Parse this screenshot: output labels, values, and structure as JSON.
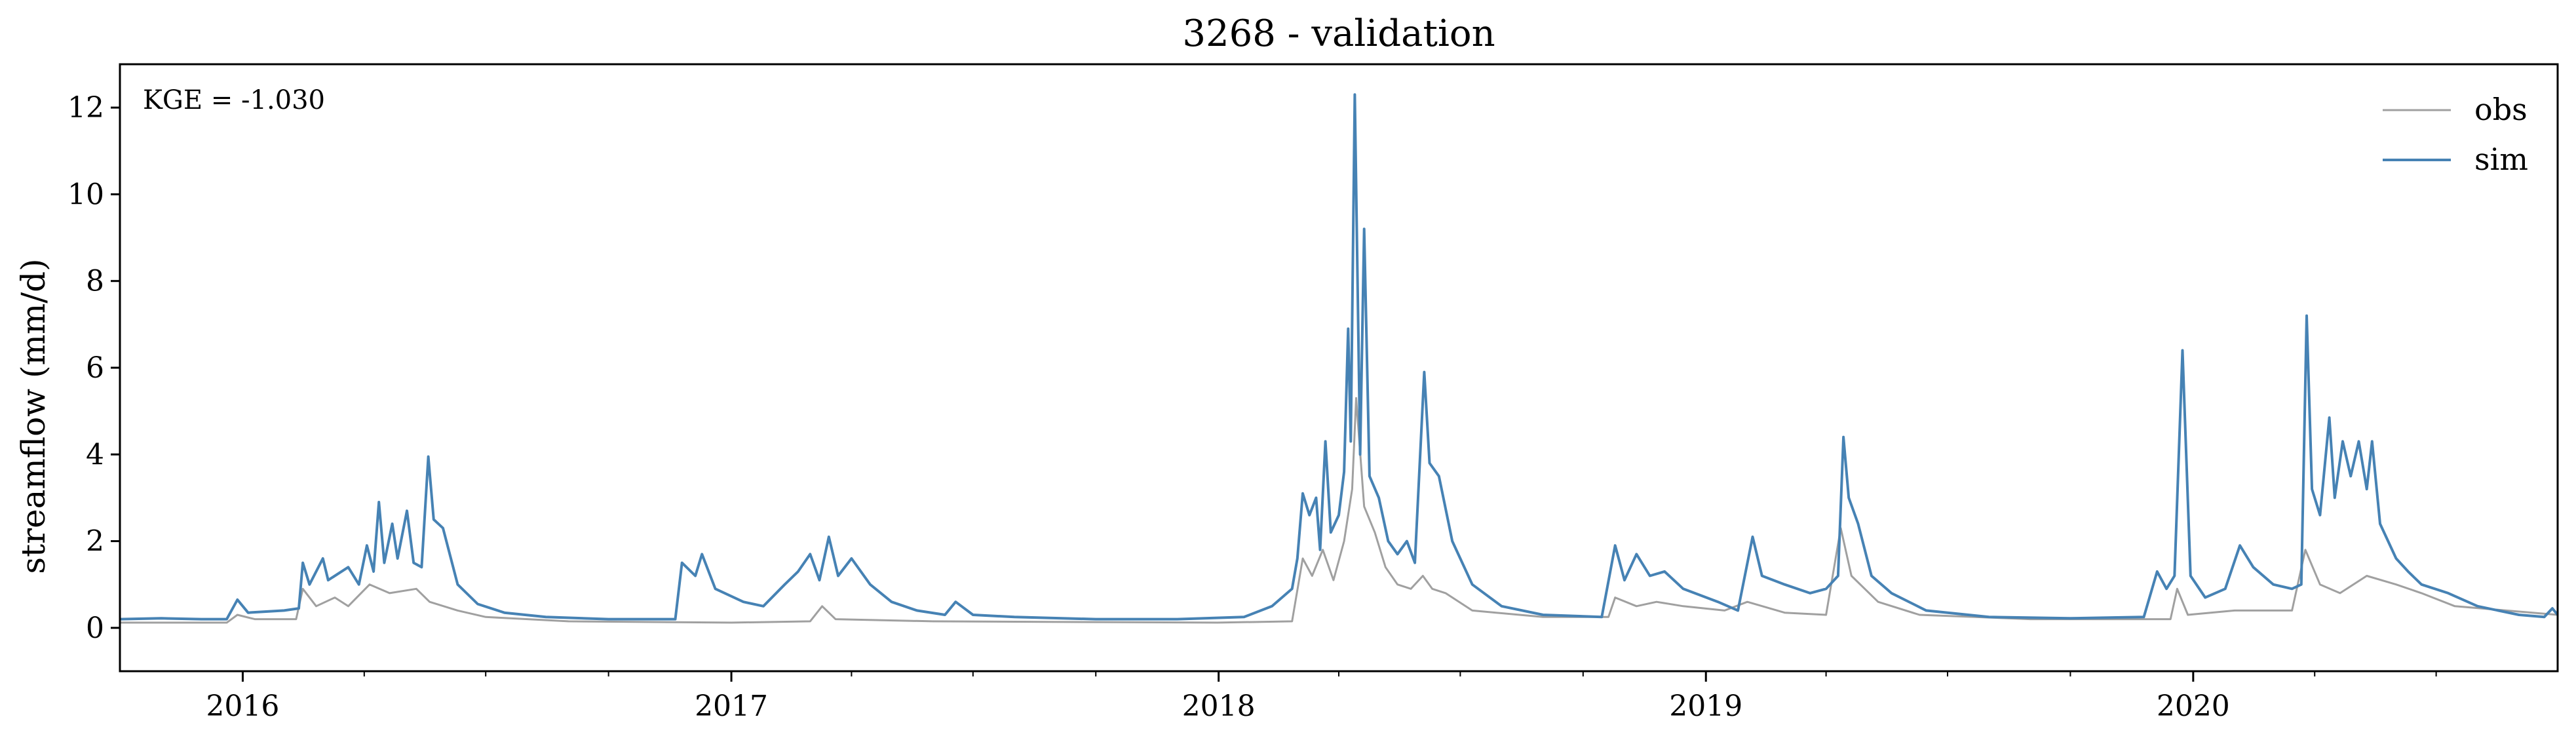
{
  "chart_data": {
    "type": "line",
    "title": "3268 - validation",
    "xlabel": "",
    "ylabel": "streamflow (mm/d)",
    "annotation": "KGE = -1.030",
    "xlim": [
      "2015-10-01",
      "2020-09-30"
    ],
    "ylim": [
      -1,
      13
    ],
    "yticks": [
      0,
      2,
      4,
      6,
      8,
      10,
      12
    ],
    "xticks": [
      {
        "date": "2016-01-01",
        "label": "2016"
      },
      {
        "date": "2017-01-01",
        "label": "2017"
      },
      {
        "date": "2018-01-01",
        "label": "2018"
      },
      {
        "date": "2019-01-01",
        "label": "2019"
      },
      {
        "date": "2020-01-01",
        "label": "2020"
      }
    ],
    "grid": false,
    "legend": "top-right",
    "series": [
      {
        "name": "obs",
        "color": "#a0a0a0",
        "points": [
          [
            "2015-10-01",
            0.12
          ],
          [
            "2015-12-20",
            0.12
          ],
          [
            "2015-12-28",
            0.3
          ],
          [
            "2016-01-10",
            0.2
          ],
          [
            "2016-02-10",
            0.2
          ],
          [
            "2016-02-15",
            0.9
          ],
          [
            "2016-02-25",
            0.5
          ],
          [
            "2016-03-10",
            0.7
          ],
          [
            "2016-03-20",
            0.5
          ],
          [
            "2016-04-05",
            1.0
          ],
          [
            "2016-04-20",
            0.8
          ],
          [
            "2016-05-10",
            0.9
          ],
          [
            "2016-05-20",
            0.6
          ],
          [
            "2016-06-10",
            0.4
          ],
          [
            "2016-07-01",
            0.25
          ],
          [
            "2016-09-01",
            0.15
          ],
          [
            "2017-01-01",
            0.12
          ],
          [
            "2017-03-01",
            0.15
          ],
          [
            "2017-03-10",
            0.5
          ],
          [
            "2017-03-20",
            0.2
          ],
          [
            "2017-06-01",
            0.15
          ],
          [
            "2017-12-31",
            0.12
          ],
          [
            "2018-02-25",
            0.15
          ],
          [
            "2018-03-05",
            1.6
          ],
          [
            "2018-03-12",
            1.2
          ],
          [
            "2018-03-20",
            1.8
          ],
          [
            "2018-03-28",
            1.1
          ],
          [
            "2018-04-05",
            2.0
          ],
          [
            "2018-04-11",
            3.2
          ],
          [
            "2018-04-14",
            5.3
          ],
          [
            "2018-04-20",
            2.8
          ],
          [
            "2018-04-28",
            2.2
          ],
          [
            "2018-05-06",
            1.4
          ],
          [
            "2018-05-15",
            1.0
          ],
          [
            "2018-05-25",
            0.9
          ],
          [
            "2018-06-03",
            1.2
          ],
          [
            "2018-06-10",
            0.9
          ],
          [
            "2018-06-20",
            0.8
          ],
          [
            "2018-07-10",
            0.4
          ],
          [
            "2018-09-01",
            0.25
          ],
          [
            "2018-10-20",
            0.25
          ],
          [
            "2018-10-25",
            0.7
          ],
          [
            "2018-11-10",
            0.5
          ],
          [
            "2018-11-25",
            0.6
          ],
          [
            "2018-12-15",
            0.5
          ],
          [
            "2019-01-15",
            0.4
          ],
          [
            "2019-02-01",
            0.6
          ],
          [
            "2019-03-01",
            0.35
          ],
          [
            "2019-04-01",
            0.3
          ],
          [
            "2019-04-12",
            2.3
          ],
          [
            "2019-04-20",
            1.2
          ],
          [
            "2019-05-10",
            0.6
          ],
          [
            "2019-06-10",
            0.3
          ],
          [
            "2019-09-01",
            0.2
          ],
          [
            "2019-12-15",
            0.2
          ],
          [
            "2019-12-20",
            0.9
          ],
          [
            "2019-12-28",
            0.3
          ],
          [
            "2020-02-01",
            0.4
          ],
          [
            "2020-03-15",
            0.4
          ],
          [
            "2020-03-25",
            1.8
          ],
          [
            "2020-04-05",
            1.0
          ],
          [
            "2020-04-20",
            0.8
          ],
          [
            "2020-05-10",
            1.2
          ],
          [
            "2020-06-01",
            1.0
          ],
          [
            "2020-06-20",
            0.8
          ],
          [
            "2020-07-15",
            0.5
          ],
          [
            "2020-09-30",
            0.3
          ]
        ]
      },
      {
        "name": "sim",
        "color": "#4682b4",
        "points": [
          [
            "2015-10-01",
            0.2
          ],
          [
            "2015-11-01",
            0.22
          ],
          [
            "2015-12-01",
            0.2
          ],
          [
            "2015-12-20",
            0.2
          ],
          [
            "2015-12-28",
            0.65
          ],
          [
            "2016-01-05",
            0.35
          ],
          [
            "2016-02-01",
            0.4
          ],
          [
            "2016-02-12",
            0.45
          ],
          [
            "2016-02-15",
            1.5
          ],
          [
            "2016-02-20",
            1.0
          ],
          [
            "2016-03-01",
            1.6
          ],
          [
            "2016-03-05",
            1.1
          ],
          [
            "2016-03-20",
            1.4
          ],
          [
            "2016-03-28",
            1.0
          ],
          [
            "2016-04-03",
            1.9
          ],
          [
            "2016-04-08",
            1.3
          ],
          [
            "2016-04-12",
            2.9
          ],
          [
            "2016-04-16",
            1.5
          ],
          [
            "2016-04-22",
            2.4
          ],
          [
            "2016-04-26",
            1.6
          ],
          [
            "2016-05-03",
            2.7
          ],
          [
            "2016-05-08",
            1.5
          ],
          [
            "2016-05-14",
            1.4
          ],
          [
            "2016-05-19",
            3.95
          ],
          [
            "2016-05-23",
            2.5
          ],
          [
            "2016-05-30",
            2.3
          ],
          [
            "2016-06-10",
            1.0
          ],
          [
            "2016-06-25",
            0.55
          ],
          [
            "2016-07-15",
            0.35
          ],
          [
            "2016-08-15",
            0.25
          ],
          [
            "2016-10-01",
            0.2
          ],
          [
            "2016-11-20",
            0.2
          ],
          [
            "2016-11-25",
            1.5
          ],
          [
            "2016-12-05",
            1.2
          ],
          [
            "2016-12-10",
            1.7
          ],
          [
            "2016-12-20",
            0.9
          ],
          [
            "2017-01-10",
            0.6
          ],
          [
            "2017-01-25",
            0.5
          ],
          [
            "2017-02-10",
            1.0
          ],
          [
            "2017-02-20",
            1.3
          ],
          [
            "2017-03-01",
            1.7
          ],
          [
            "2017-03-08",
            1.1
          ],
          [
            "2017-03-15",
            2.1
          ],
          [
            "2017-03-22",
            1.2
          ],
          [
            "2017-04-01",
            1.6
          ],
          [
            "2017-04-15",
            1.0
          ],
          [
            "2017-05-01",
            0.6
          ],
          [
            "2017-05-20",
            0.4
          ],
          [
            "2017-06-10",
            0.3
          ],
          [
            "2017-06-18",
            0.6
          ],
          [
            "2017-07-01",
            0.3
          ],
          [
            "2017-08-01",
            0.25
          ],
          [
            "2017-10-01",
            0.2
          ],
          [
            "2017-12-01",
            0.2
          ],
          [
            "2018-01-20",
            0.25
          ],
          [
            "2018-02-10",
            0.5
          ],
          [
            "2018-02-25",
            0.9
          ],
          [
            "2018-03-01",
            1.6
          ],
          [
            "2018-03-05",
            3.1
          ],
          [
            "2018-03-10",
            2.6
          ],
          [
            "2018-03-15",
            3.0
          ],
          [
            "2018-03-18",
            1.8
          ],
          [
            "2018-03-22",
            4.3
          ],
          [
            "2018-03-26",
            2.2
          ],
          [
            "2018-04-01",
            2.6
          ],
          [
            "2018-04-05",
            3.6
          ],
          [
            "2018-04-08",
            6.9
          ],
          [
            "2018-04-10",
            4.3
          ],
          [
            "2018-04-13",
            12.3
          ],
          [
            "2018-04-17",
            4.0
          ],
          [
            "2018-04-20",
            9.2
          ],
          [
            "2018-04-24",
            3.5
          ],
          [
            "2018-05-01",
            3.0
          ],
          [
            "2018-05-08",
            2.0
          ],
          [
            "2018-05-15",
            1.7
          ],
          [
            "2018-05-22",
            2.0
          ],
          [
            "2018-05-28",
            1.5
          ],
          [
            "2018-06-04",
            5.9
          ],
          [
            "2018-06-08",
            3.8
          ],
          [
            "2018-06-15",
            3.5
          ],
          [
            "2018-06-25",
            2.0
          ],
          [
            "2018-07-10",
            1.0
          ],
          [
            "2018-08-01",
            0.5
          ],
          [
            "2018-09-01",
            0.3
          ],
          [
            "2018-10-15",
            0.25
          ],
          [
            "2018-10-25",
            1.9
          ],
          [
            "2018-11-01",
            1.1
          ],
          [
            "2018-11-10",
            1.7
          ],
          [
            "2018-11-20",
            1.2
          ],
          [
            "2018-12-01",
            1.3
          ],
          [
            "2018-12-15",
            0.9
          ],
          [
            "2019-01-10",
            0.6
          ],
          [
            "2019-01-25",
            0.4
          ],
          [
            "2019-02-05",
            2.1
          ],
          [
            "2019-02-12",
            1.2
          ],
          [
            "2019-03-01",
            1.0
          ],
          [
            "2019-03-20",
            0.8
          ],
          [
            "2019-04-01",
            0.9
          ],
          [
            "2019-04-10",
            1.2
          ],
          [
            "2019-04-14",
            4.4
          ],
          [
            "2019-04-18",
            3.0
          ],
          [
            "2019-04-25",
            2.4
          ],
          [
            "2019-05-05",
            1.2
          ],
          [
            "2019-05-20",
            0.8
          ],
          [
            "2019-06-15",
            0.4
          ],
          [
            "2019-08-01",
            0.25
          ],
          [
            "2019-10-01",
            0.22
          ],
          [
            "2019-11-25",
            0.25
          ],
          [
            "2019-12-05",
            1.3
          ],
          [
            "2019-12-12",
            0.9
          ],
          [
            "2019-12-18",
            1.2
          ],
          [
            "2019-12-24",
            6.4
          ],
          [
            "2019-12-30",
            1.2
          ],
          [
            "2020-01-10",
            0.7
          ],
          [
            "2020-01-25",
            0.9
          ],
          [
            "2020-02-05",
            1.9
          ],
          [
            "2020-02-15",
            1.4
          ],
          [
            "2020-03-01",
            1.0
          ],
          [
            "2020-03-15",
            0.9
          ],
          [
            "2020-03-22",
            1.0
          ],
          [
            "2020-03-26",
            7.2
          ],
          [
            "2020-03-30",
            3.2
          ],
          [
            "2020-04-05",
            2.6
          ],
          [
            "2020-04-12",
            4.85
          ],
          [
            "2020-04-16",
            3.0
          ],
          [
            "2020-04-22",
            4.3
          ],
          [
            "2020-04-28",
            3.5
          ],
          [
            "2020-05-04",
            4.3
          ],
          [
            "2020-05-10",
            3.2
          ],
          [
            "2020-05-14",
            4.3
          ],
          [
            "2020-05-20",
            2.4
          ],
          [
            "2020-06-01",
            1.6
          ],
          [
            "2020-06-10",
            1.3
          ],
          [
            "2020-06-20",
            1.0
          ],
          [
            "2020-07-10",
            0.8
          ],
          [
            "2020-08-01",
            0.5
          ],
          [
            "2020-09-01",
            0.3
          ],
          [
            "2020-09-20",
            0.25
          ],
          [
            "2020-09-26",
            0.45
          ],
          [
            "2020-09-30",
            0.3
          ]
        ]
      }
    ]
  }
}
